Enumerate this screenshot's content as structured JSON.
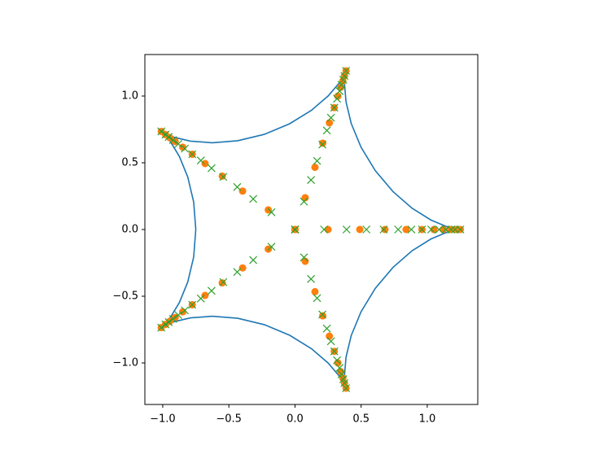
{
  "chart_data": {
    "type": "line",
    "xlim": [
      -1.135,
      1.382
    ],
    "ylim": [
      -1.311,
      1.311
    ],
    "xticks": [
      {
        "value": -1.0,
        "label": "−1.0"
      },
      {
        "value": -0.5,
        "label": "−0.5"
      },
      {
        "value": 0.0,
        "label": "0.0"
      },
      {
        "value": 0.5,
        "label": "0.5"
      },
      {
        "value": 1.0,
        "label": "1.0"
      }
    ],
    "yticks": [
      {
        "value": -1.0,
        "label": "−1.0"
      },
      {
        "value": -0.5,
        "label": "−0.5"
      },
      {
        "value": 0.0,
        "label": "0.0"
      },
      {
        "value": 0.5,
        "label": "0.5"
      },
      {
        "value": 1.0,
        "label": "1.0"
      }
    ],
    "grid": false,
    "series": [
      {
        "type": "line",
        "color": "#1f77b4",
        "x": [
          1.25,
          1.223,
          1.145,
          1.028,
          0.887,
          0.741,
          0.607,
          0.499,
          0.425,
          0.386,
          0.375,
          0.381,
          0.386,
          0.375,
          0.333,
          0.25,
          0.124,
          -0.041,
          -0.232,
          -0.433,
          -0.625,
          -0.79,
          -0.914,
          -0.988,
          -1.011,
          -0.991,
          -0.94,
          -0.874,
          -0.811,
          -0.766,
          -0.75,
          -0.766,
          -0.811,
          -0.874,
          -0.94,
          -0.991,
          -1.011,
          -0.988,
          -0.914,
          -0.79,
          -0.625,
          -0.433,
          -0.232,
          -0.041,
          0.124,
          0.25,
          0.333,
          0.375,
          0.386,
          0.381,
          0.375,
          0.386,
          0.425,
          0.499,
          0.607,
          0.741,
          0.887,
          1.028,
          1.145,
          1.223,
          1.25
        ],
        "values": [
          0,
          0.003,
          0.022,
          0.071,
          0.158,
          0.284,
          0.441,
          0.617,
          0.795,
          0.956,
          1.083,
          1.162,
          1.189,
          1.164,
          1.096,
          1.0,
          0.893,
          0.792,
          0.713,
          0.665,
          0.65,
          0.662,
          0.691,
          0.721,
          0.735,
          0.717,
          0.655,
          0.547,
          0.394,
          0.206,
          0,
          -0.206,
          -0.394,
          -0.547,
          -0.655,
          -0.717,
          -0.735,
          -0.721,
          -0.691,
          -0.662,
          -0.65,
          -0.665,
          -0.713,
          -0.792,
          -0.893,
          -1.0,
          -1.096,
          -1.164,
          -1.189,
          -1.162,
          -1.083,
          -0.956,
          -0.795,
          -0.617,
          -0.441,
          -0.284,
          -0.158,
          -0.071,
          -0.022,
          -0.003,
          0
        ]
      },
      {
        "type": "scatter",
        "marker": "o",
        "color": "#ff7f0e",
        "x": [
          0,
          0.25,
          0.49,
          0.68,
          0.84,
          0.96,
          1.05,
          1.12,
          1.17,
          1.21,
          1.25,
          0,
          0.077,
          0.151,
          0.21,
          0.26,
          0.297,
          0.324,
          0.346,
          0.362,
          0.374,
          0.386,
          0,
          -0.202,
          -0.396,
          -0.55,
          -0.68,
          -0.777,
          -0.849,
          -0.906,
          -0.947,
          -0.979,
          -1.011,
          0,
          -0.202,
          -0.396,
          -0.55,
          -0.68,
          -0.777,
          -0.849,
          -0.906,
          -0.947,
          -0.979,
          -1.011,
          0,
          0.077,
          0.151,
          0.21,
          0.26,
          0.297,
          0.324,
          0.346,
          0.362,
          0.374,
          0.386
        ],
        "values": [
          0,
          0,
          0,
          0,
          0,
          0,
          0,
          0,
          0,
          0,
          0,
          0,
          0.238,
          0.466,
          0.647,
          0.799,
          0.913,
          0.999,
          1.065,
          1.113,
          1.151,
          1.189,
          0,
          0.147,
          0.288,
          0.4,
          0.494,
          0.564,
          0.617,
          0.659,
          0.688,
          0.711,
          0.735,
          0,
          -0.147,
          -0.288,
          -0.4,
          -0.494,
          -0.564,
          -0.617,
          -0.659,
          -0.688,
          -0.711,
          -0.735,
          0,
          -0.238,
          -0.466,
          -0.647,
          -0.799,
          -0.913,
          -0.999,
          -1.065,
          -1.113,
          -1.151,
          -1.189
        ]
      },
      {
        "type": "scatter",
        "marker": "x",
        "color": "#2ca02c",
        "x": [
          0,
          0.22,
          0.39,
          0.54,
          0.67,
          0.78,
          0.88,
          0.96,
          1.03,
          1.09,
          1.14,
          1.18,
          1.21,
          1.25,
          0,
          0.068,
          0.121,
          0.167,
          0.207,
          0.241,
          0.272,
          0.297,
          0.318,
          0.337,
          0.352,
          0.365,
          0.374,
          0.386,
          0,
          -0.178,
          -0.316,
          -0.437,
          -0.542,
          -0.631,
          -0.712,
          -0.777,
          -0.833,
          -0.882,
          -0.922,
          -0.955,
          -0.979,
          -1.011,
          0,
          -0.178,
          -0.316,
          -0.437,
          -0.542,
          -0.631,
          -0.712,
          -0.777,
          -0.833,
          -0.882,
          -0.922,
          -0.955,
          -0.979,
          -1.011,
          0,
          0.068,
          0.121,
          0.167,
          0.207,
          0.241,
          0.272,
          0.297,
          0.318,
          0.337,
          0.352,
          0.365,
          0.374,
          0.386
        ],
        "values": [
          0,
          0,
          0,
          0,
          0,
          0,
          0,
          0,
          0,
          0,
          0,
          0,
          0,
          0,
          0,
          0.209,
          0.371,
          0.514,
          0.637,
          0.742,
          0.837,
          0.913,
          0.98,
          1.037,
          1.084,
          1.122,
          1.151,
          1.189,
          0,
          0.129,
          0.229,
          0.318,
          0.394,
          0.459,
          0.517,
          0.564,
          0.606,
          0.641,
          0.67,
          0.694,
          0.711,
          0.735,
          0,
          -0.129,
          -0.229,
          -0.318,
          -0.394,
          -0.459,
          -0.517,
          -0.564,
          -0.606,
          -0.641,
          -0.67,
          -0.694,
          -0.711,
          -0.735,
          0,
          -0.209,
          -0.371,
          -0.514,
          -0.637,
          -0.742,
          -0.837,
          -0.913,
          -0.98,
          -1.037,
          -1.084,
          -1.122,
          -1.151,
          -1.189
        ]
      }
    ]
  }
}
